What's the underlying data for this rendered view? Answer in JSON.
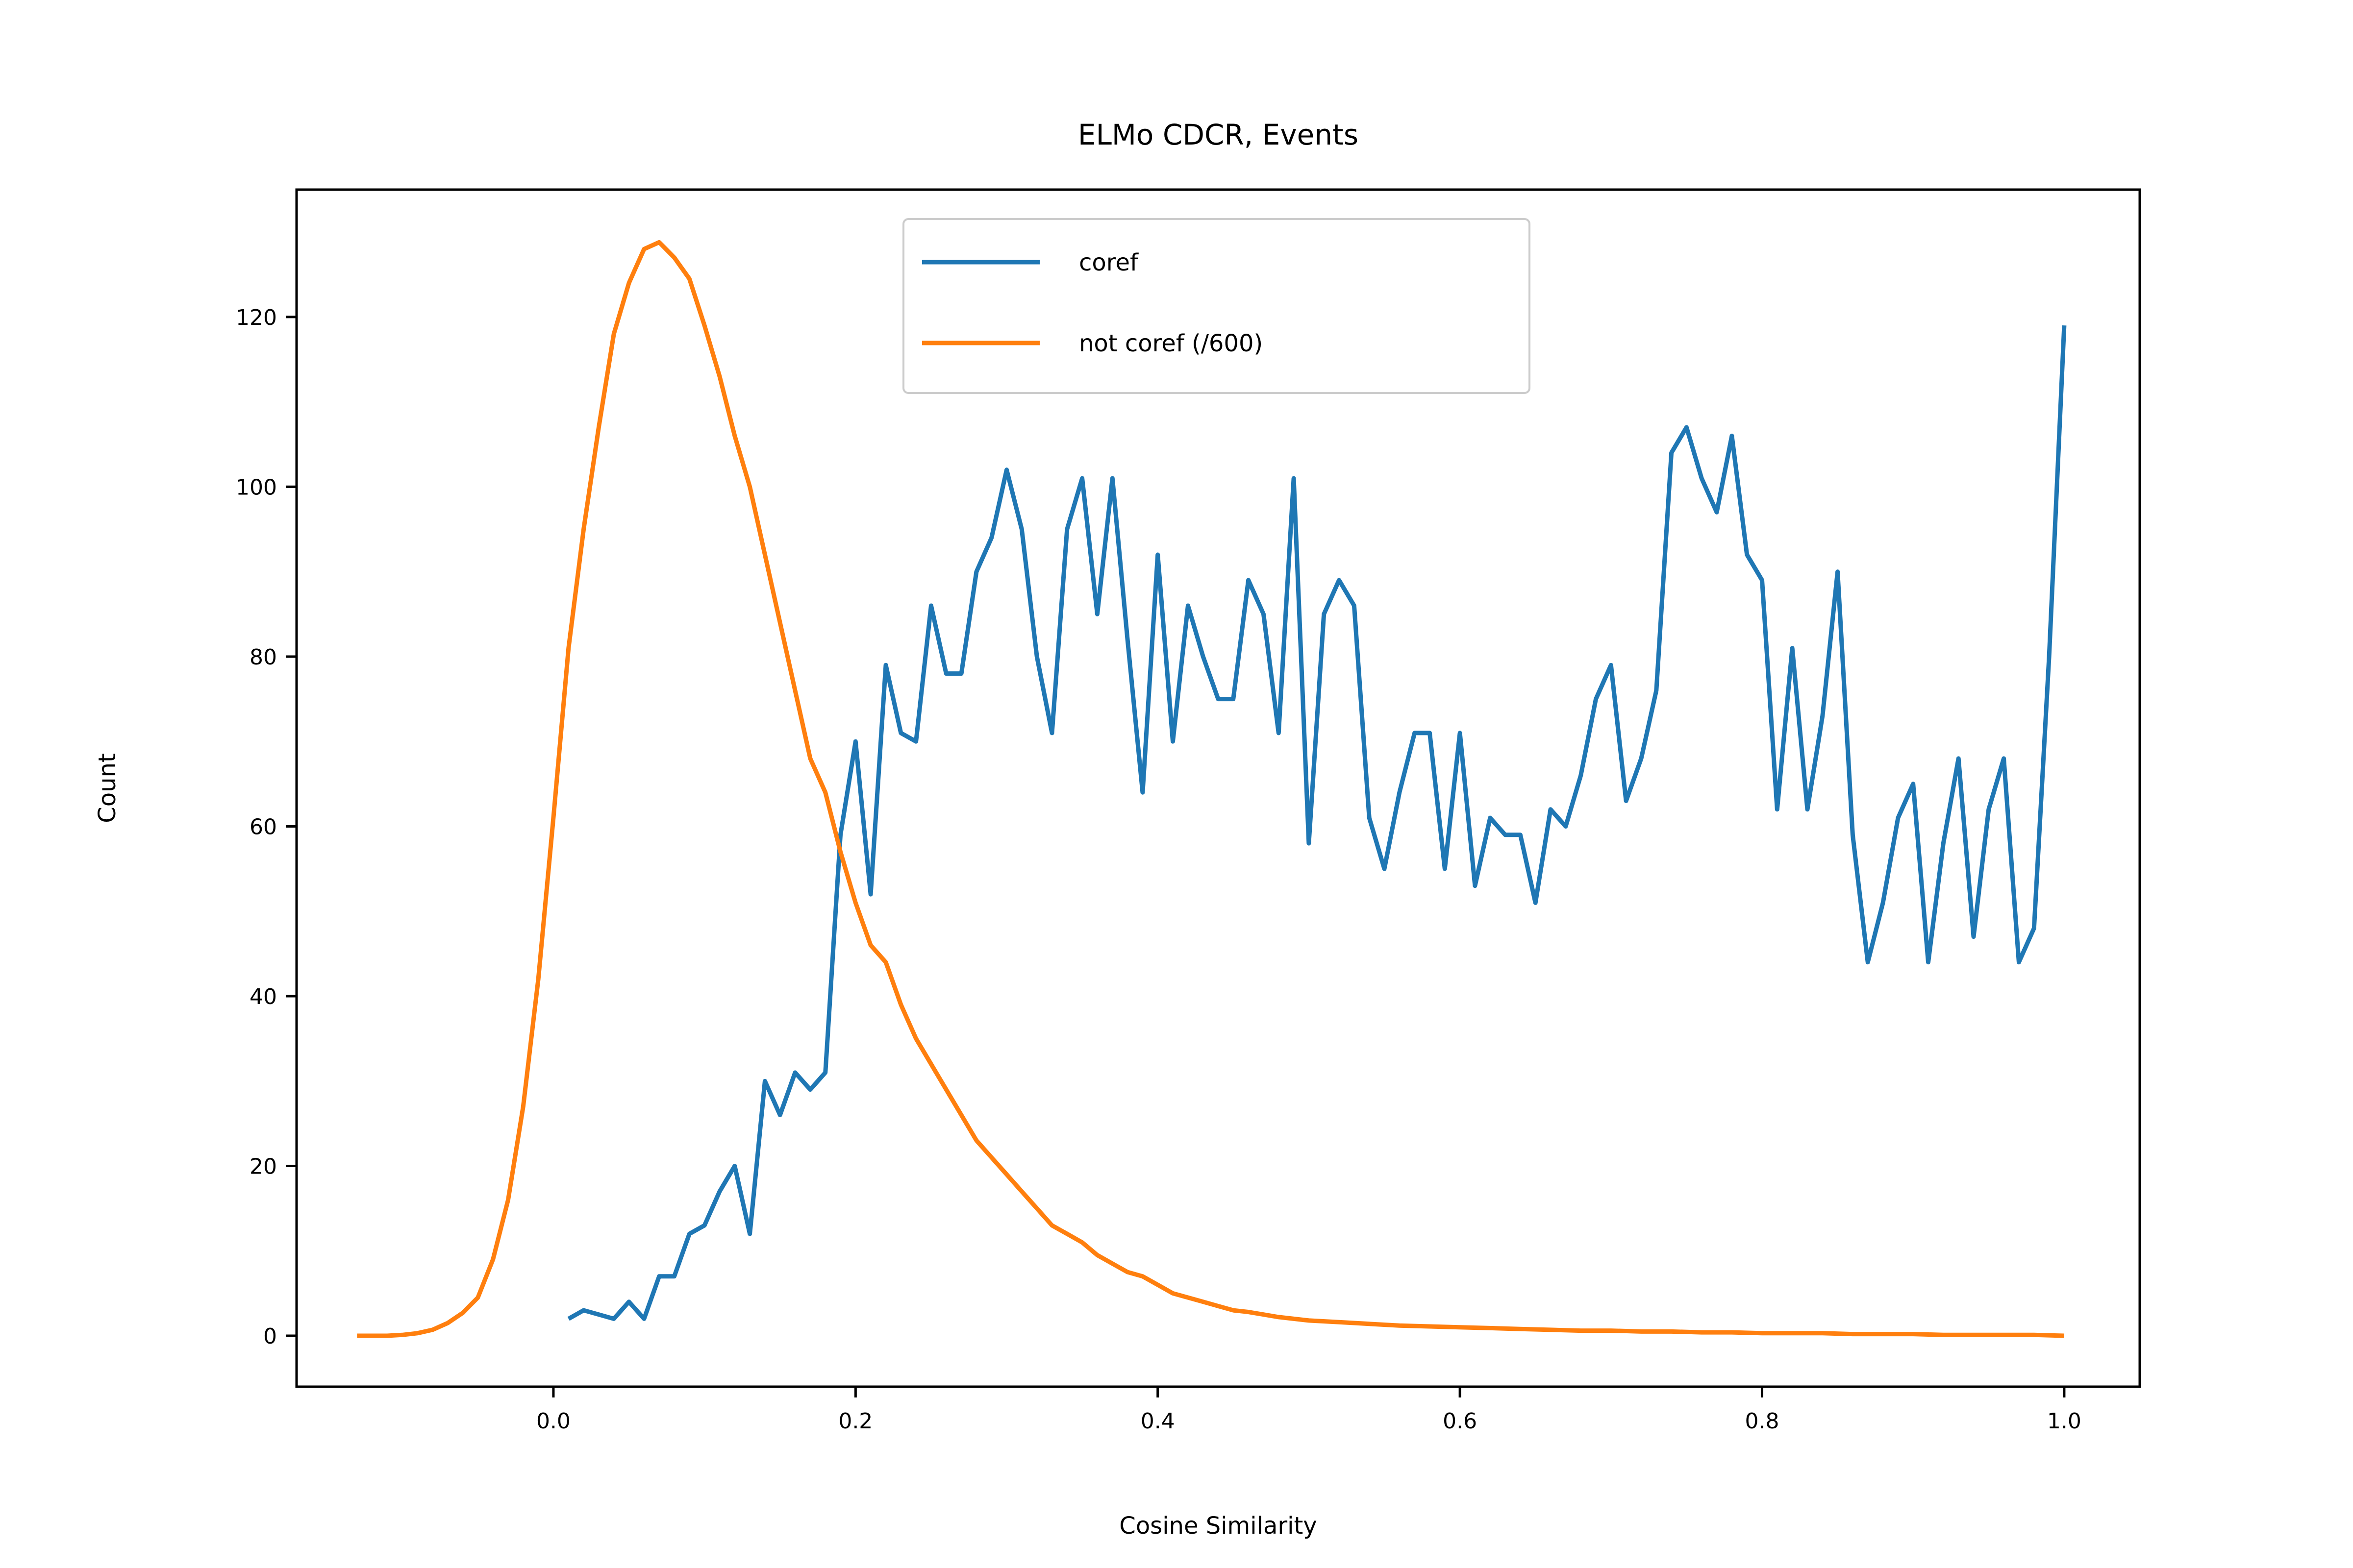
{
  "chart_data": {
    "type": "line",
    "title": "ELMo CDCR, Events",
    "xlabel": "Cosine Similarity",
    "ylabel": "Count",
    "xlim": [
      -0.17,
      1.05
    ],
    "ylim": [
      -6,
      135
    ],
    "xticks": [
      0.0,
      0.2,
      0.4,
      0.6,
      0.8,
      1.0
    ],
    "xtick_labels": [
      "0.0",
      "0.2",
      "0.4",
      "0.6",
      "0.8",
      "1.0"
    ],
    "yticks": [
      0,
      20,
      40,
      60,
      80,
      100,
      120
    ],
    "ytick_labels": [
      "0",
      "20",
      "40",
      "60",
      "80",
      "100",
      "120"
    ],
    "grid": false,
    "legend_position": "top-center",
    "series": [
      {
        "name": "coref",
        "color": "#1f77b4",
        "x": [
          0.01,
          0.02,
          0.03,
          0.04,
          0.05,
          0.06,
          0.07,
          0.08,
          0.09,
          0.1,
          0.11,
          0.12,
          0.13,
          0.14,
          0.15,
          0.16,
          0.17,
          0.18,
          0.19,
          0.2,
          0.21,
          0.22,
          0.23,
          0.24,
          0.25,
          0.26,
          0.27,
          0.28,
          0.29,
          0.3,
          0.31,
          0.32,
          0.33,
          0.34,
          0.35,
          0.36,
          0.37,
          0.38,
          0.39,
          0.4,
          0.41,
          0.42,
          0.43,
          0.44,
          0.45,
          0.46,
          0.47,
          0.48,
          0.49,
          0.5,
          0.51,
          0.52,
          0.53,
          0.54,
          0.55,
          0.56,
          0.57,
          0.58,
          0.59,
          0.6,
          0.61,
          0.62,
          0.63,
          0.64,
          0.65,
          0.66,
          0.67,
          0.68,
          0.69,
          0.7,
          0.71,
          0.72,
          0.73,
          0.74,
          0.75,
          0.76,
          0.77,
          0.78,
          0.79,
          0.8,
          0.81,
          0.82,
          0.83,
          0.84,
          0.85,
          0.86,
          0.87,
          0.88,
          0.89,
          0.9,
          0.91,
          0.92,
          0.93,
          0.94,
          0.95,
          0.96,
          0.97,
          0.98,
          0.99,
          1.0
        ],
        "values": [
          2,
          3,
          2.5,
          2,
          4,
          2,
          7,
          7,
          12,
          13,
          17,
          20,
          12,
          30,
          26,
          31,
          29,
          31,
          59,
          70,
          52,
          79,
          71,
          70,
          86,
          78,
          78,
          90,
          94,
          102,
          95,
          80,
          71,
          95,
          101,
          85,
          101,
          82,
          64,
          92,
          70,
          86,
          80,
          75,
          75,
          89,
          85,
          71,
          101,
          58,
          85,
          89,
          86,
          61,
          55,
          64,
          71,
          71,
          55,
          71,
          53,
          61,
          59,
          59,
          51,
          62,
          60,
          66,
          75,
          79,
          63,
          68,
          76,
          104,
          107,
          101,
          97,
          106,
          92,
          89,
          62,
          81,
          62,
          73,
          90,
          59,
          44,
          51,
          61,
          65,
          44,
          58,
          68,
          47,
          62,
          68,
          44,
          48,
          80,
          119
        ]
      },
      {
        "name": "not coref (/600)",
        "color": "#ff7f0e",
        "x": [
          -0.13,
          -0.12,
          -0.11,
          -0.1,
          -0.09,
          -0.08,
          -0.07,
          -0.06,
          -0.05,
          -0.04,
          -0.03,
          -0.02,
          -0.01,
          0.0,
          0.01,
          0.02,
          0.03,
          0.04,
          0.05,
          0.06,
          0.07,
          0.08,
          0.09,
          0.1,
          0.11,
          0.12,
          0.13,
          0.14,
          0.15,
          0.16,
          0.17,
          0.18,
          0.19,
          0.2,
          0.21,
          0.22,
          0.23,
          0.24,
          0.25,
          0.26,
          0.27,
          0.28,
          0.29,
          0.3,
          0.31,
          0.32,
          0.33,
          0.34,
          0.35,
          0.36,
          0.37,
          0.38,
          0.39,
          0.4,
          0.41,
          0.42,
          0.43,
          0.44,
          0.45,
          0.46,
          0.47,
          0.48,
          0.49,
          0.5,
          0.52,
          0.54,
          0.56,
          0.58,
          0.6,
          0.62,
          0.64,
          0.66,
          0.68,
          0.7,
          0.72,
          0.74,
          0.76,
          0.78,
          0.8,
          0.82,
          0.84,
          0.86,
          0.88,
          0.9,
          0.92,
          0.94,
          0.96,
          0.98,
          1.0
        ],
        "values": [
          0,
          0,
          0,
          0.1,
          0.3,
          0.7,
          1.5,
          2.7,
          4.5,
          9,
          16,
          27,
          42,
          61,
          81,
          95,
          107,
          118,
          124,
          128,
          128.8,
          127,
          124.5,
          119,
          113,
          106,
          100,
          92,
          84,
          76,
          68,
          64,
          57,
          51,
          46,
          44,
          39,
          35,
          32,
          29,
          26,
          23,
          21,
          19,
          17,
          15,
          13,
          12,
          11,
          9.5,
          8.5,
          7.5,
          7,
          6,
          5,
          4.5,
          4,
          3.5,
          3,
          2.8,
          2.5,
          2.2,
          2,
          1.8,
          1.6,
          1.4,
          1.2,
          1.1,
          1.0,
          0.9,
          0.8,
          0.7,
          0.6,
          0.6,
          0.5,
          0.5,
          0.4,
          0.4,
          0.3,
          0.3,
          0.3,
          0.2,
          0.2,
          0.2,
          0.1,
          0.1,
          0.1,
          0.1,
          0
        ]
      }
    ]
  }
}
